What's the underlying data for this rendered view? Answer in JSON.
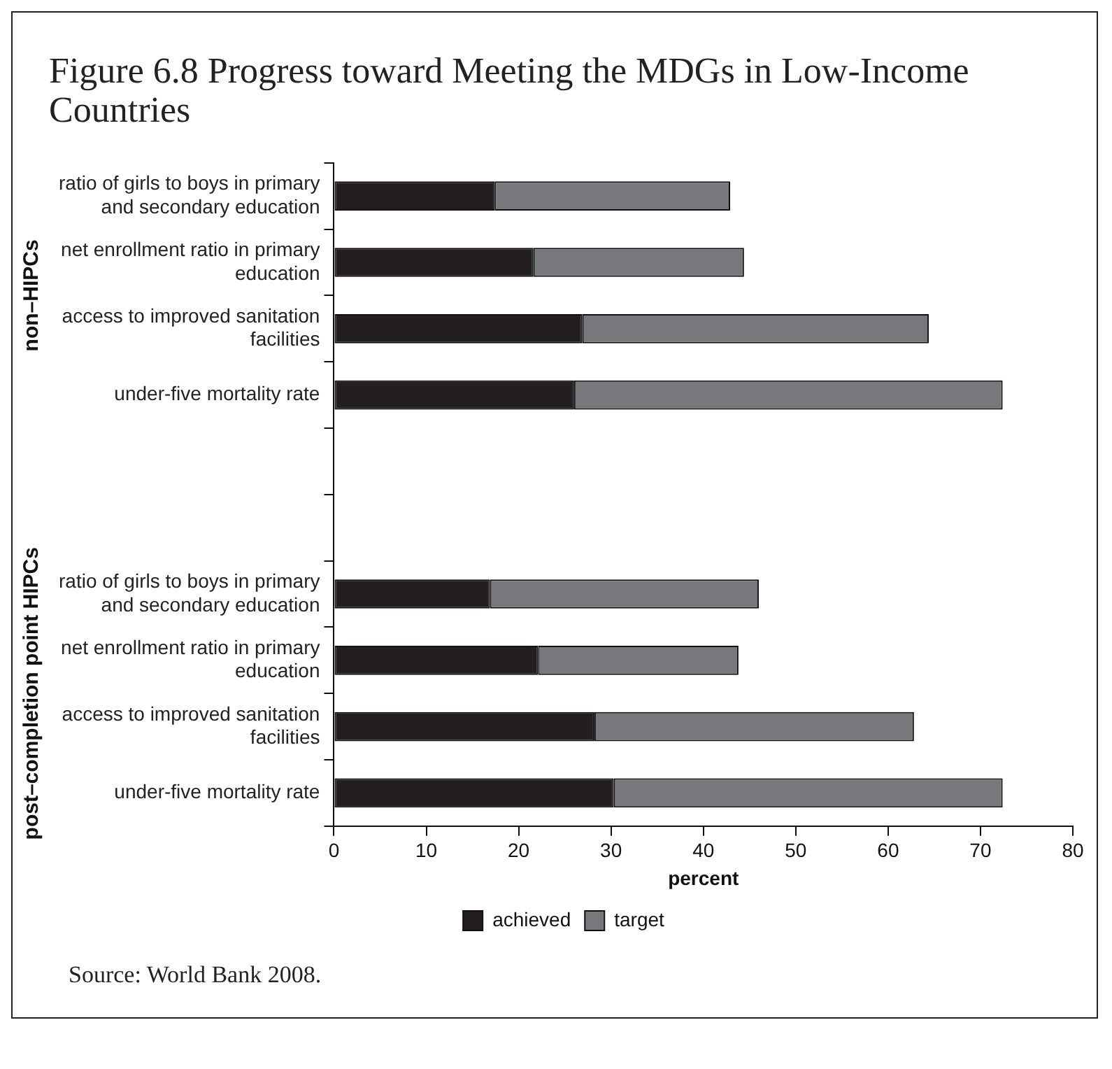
{
  "chart_data": {
    "type": "bar",
    "orientation": "horizontal",
    "stacked": true,
    "title": "Figure 6.8 Progress toward Meeting the MDGs in Low-Income Countries",
    "xlabel": "percent",
    "categories": [
      "ratio of girls to boys in primary and secondary education",
      "net enrollment ratio in primary education",
      "access to improved sanitation facilities",
      "under-five mortality rate",
      null,
      null,
      "ratio of girls to boys in primary and secondary education",
      "net enrollment ratio in primary education",
      "access to improved sanitation facilities",
      "under-five mortality rate"
    ],
    "series": [
      {
        "name": "achieved",
        "color": "#231f20",
        "values": [
          17.4,
          21.6,
          26.9,
          26.0,
          null,
          null,
          16.9,
          22.1,
          28.2,
          30.3
        ]
      },
      {
        "name": "target",
        "color": "#77787b",
        "values": [
          25.5,
          22.8,
          37.5,
          46.4,
          null,
          null,
          29.1,
          21.7,
          34.6,
          42.1
        ]
      }
    ],
    "xlim": [
      0,
      80
    ],
    "xticks": [
      0,
      10,
      20,
      30,
      40,
      50,
      60,
      70,
      80
    ],
    "grid": false,
    "legend": "bottom",
    "annotations": [
      "non–HIPCs",
      "post–completion point HIPCs",
      "Source: World Bank 2008."
    ]
  }
}
